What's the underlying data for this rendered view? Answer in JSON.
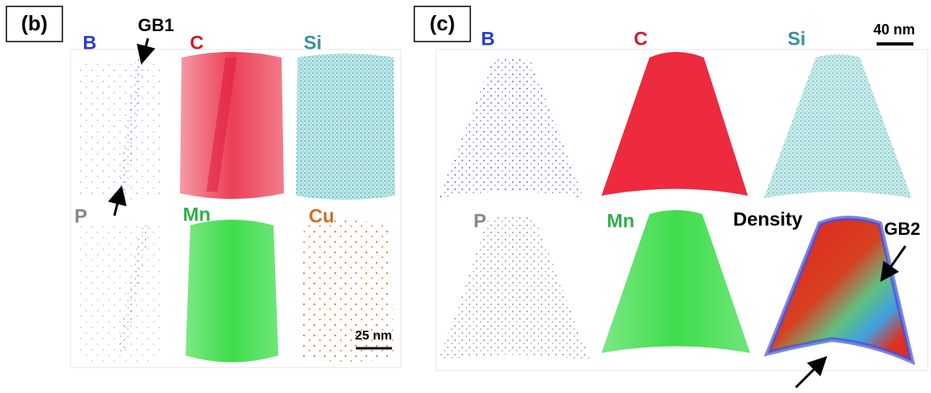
{
  "panels": [
    {
      "label": "(b)",
      "annotation": "GB1",
      "scale_bar": "25 nm",
      "maps": [
        {
          "label": "B"
        },
        {
          "label": "C"
        },
        {
          "label": "Si"
        },
        {
          "label": "P"
        },
        {
          "label": "Mn"
        },
        {
          "label": "Cu"
        }
      ]
    },
    {
      "label": "(c)",
      "annotation": "GB2",
      "scale_bar": "40 nm",
      "maps": [
        {
          "label": "B"
        },
        {
          "label": "C"
        },
        {
          "label": "Si"
        },
        {
          "label": "P"
        },
        {
          "label": "Mn"
        },
        {
          "label": "Density"
        }
      ]
    }
  ]
}
